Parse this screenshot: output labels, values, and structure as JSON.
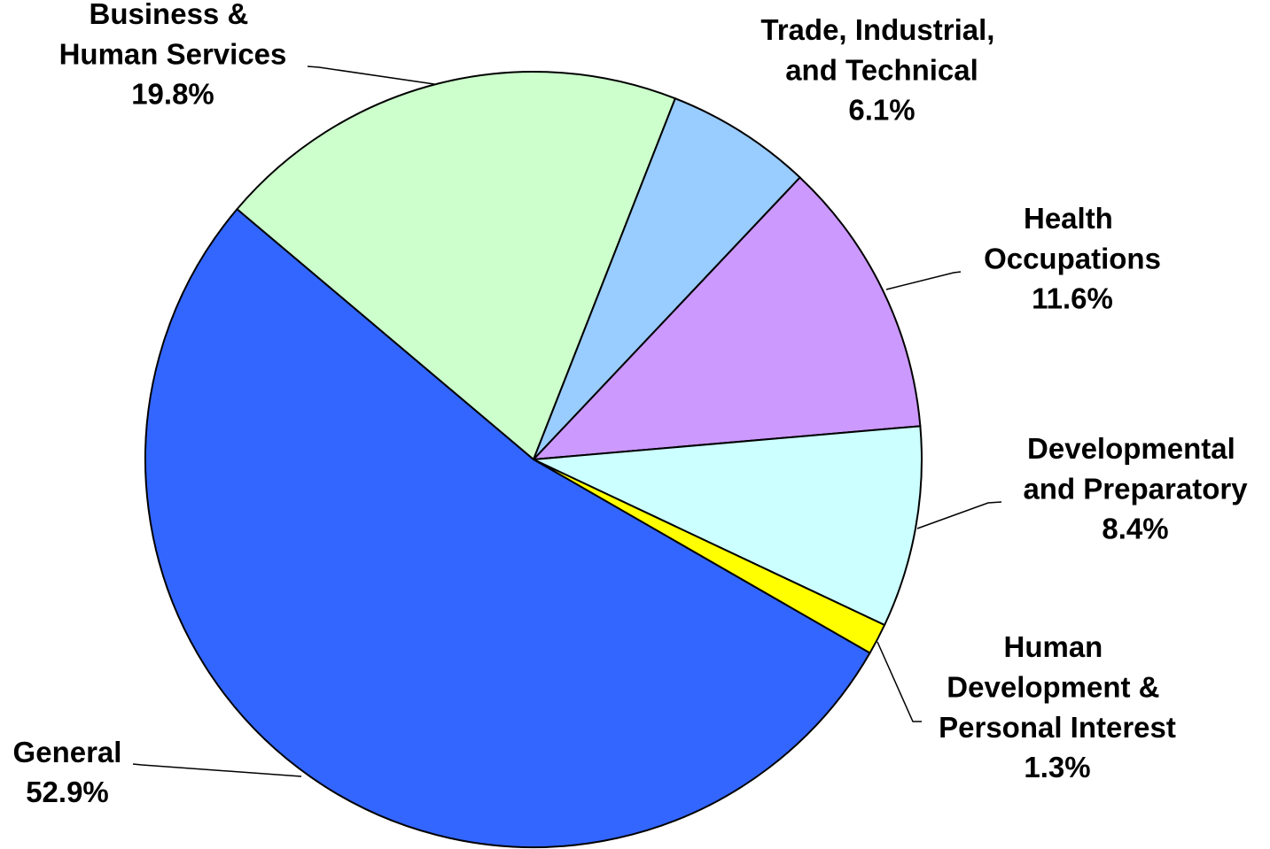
{
  "chart_data": {
    "type": "pie",
    "categories": [
      "Business & Human Services",
      "Trade, Industrial, and Technical",
      "Health Occupations",
      "Developmental and Preparatory",
      "Human Development & Personal Interest",
      "General"
    ],
    "values": [
      19.8,
      6.1,
      11.6,
      8.4,
      1.3,
      52.9
    ],
    "value_labels": [
      "19.8%",
      "6.1%",
      "11.6%",
      "8.4%",
      "1.3%",
      "52.9%"
    ],
    "colors": [
      "#ccffcc",
      "#99ccff",
      "#cc99ff",
      "#ccffff",
      "#ffff00",
      "#3366ff"
    ]
  }
}
